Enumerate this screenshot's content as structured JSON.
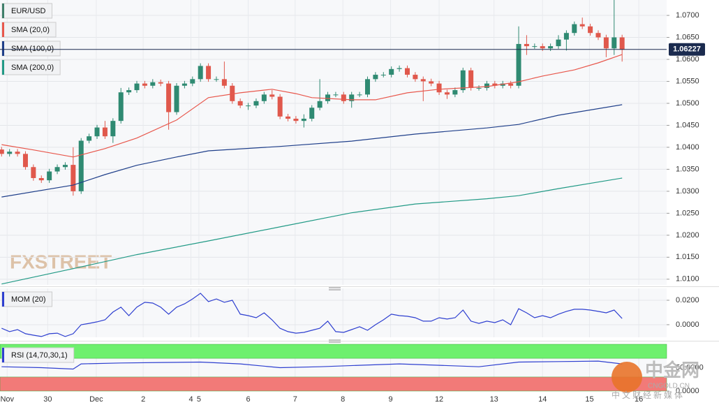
{
  "chart_data": [
    {
      "type": "candlestick",
      "name": "EUR/USD",
      "color": "#3f7f6a",
      "up_color": "#2f8a72",
      "down_color": "#e0584c",
      "open": [
        1.0395,
        1.0385,
        1.039,
        1.0385,
        1.0355,
        1.033,
        1.0325,
        1.0345,
        1.0355,
        1.036,
        1.03,
        1.0415,
        1.0425,
        1.0445,
        1.0425,
        1.046,
        1.0525,
        1.053,
        1.0545,
        1.054,
        1.0548,
        1.0545,
        1.048,
        1.054,
        1.0545,
        1.0555,
        1.0585,
        1.0555,
        1.0555,
        1.054,
        1.0505,
        1.0495,
        1.0495,
        1.0505,
        1.052,
        1.0515,
        1.047,
        1.0465,
        1.046,
        1.0465,
        1.049,
        1.0505,
        1.052,
        1.052,
        1.0505,
        1.052,
        1.052,
        1.0555,
        1.0565,
        1.0565,
        1.0578,
        1.058,
        1.0565,
        1.0555,
        1.055,
        1.0545,
        1.0525,
        1.052,
        1.053,
        1.0575,
        1.0535,
        1.0535,
        1.0545,
        1.054,
        1.0545,
        1.054,
        1.0635,
        1.063,
        1.063,
        1.0625,
        1.063,
        1.0645,
        1.066,
        1.068,
        1.0675,
        1.066,
        1.065,
        1.0625,
        1.065
      ],
      "high": [
        1.0401,
        1.0396,
        1.0396,
        1.0391,
        1.0361,
        1.0336,
        1.0351,
        1.0361,
        1.0366,
        1.04,
        1.0421,
        1.0431,
        1.0451,
        1.046,
        1.0466,
        1.0535,
        1.0536,
        1.0551,
        1.0551,
        1.0555,
        1.0554,
        1.0551,
        1.0546,
        1.0551,
        1.0561,
        1.0591,
        1.0591,
        1.0561,
        1.0595,
        1.0546,
        1.0511,
        1.0501,
        1.0511,
        1.0526,
        1.053,
        1.0521,
        1.0476,
        1.0471,
        1.0475,
        1.0496,
        1.0555,
        1.0526,
        1.0526,
        1.0526,
        1.0526,
        1.0526,
        1.0561,
        1.0571,
        1.0571,
        1.0584,
        1.0586,
        1.0586,
        1.0571,
        1.0561,
        1.0556,
        1.0551,
        1.0531,
        1.0536,
        1.0581,
        1.0581,
        1.0541,
        1.0551,
        1.0551,
        1.0551,
        1.0551,
        1.0675,
        1.0655,
        1.0636,
        1.0636,
        1.0636,
        1.0655,
        1.0666,
        1.0686,
        1.0695,
        1.0681,
        1.0666,
        1.0656,
        1.0735,
        1.0656
      ],
      "low": [
        1.0379,
        1.0379,
        1.0379,
        1.0349,
        1.0324,
        1.0319,
        1.0319,
        1.0339,
        1.0349,
        1.029,
        1.0294,
        1.0409,
        1.0419,
        1.0419,
        1.041,
        1.0454,
        1.0519,
        1.0524,
        1.0534,
        1.0534,
        1.0539,
        1.044,
        1.0474,
        1.0534,
        1.0539,
        1.0549,
        1.0549,
        1.0549,
        1.0534,
        1.0499,
        1.0489,
        1.0485,
        1.0489,
        1.0499,
        1.0509,
        1.0464,
        1.0459,
        1.0454,
        1.0445,
        1.0459,
        1.0484,
        1.0499,
        1.0514,
        1.0499,
        1.049,
        1.0514,
        1.0514,
        1.0549,
        1.0559,
        1.0559,
        1.0572,
        1.0559,
        1.0549,
        1.0505,
        1.0539,
        1.0519,
        1.051,
        1.0514,
        1.0524,
        1.0529,
        1.0529,
        1.0529,
        1.0534,
        1.0534,
        1.0534,
        1.0534,
        1.061,
        1.0624,
        1.0619,
        1.0619,
        1.0624,
        1.062,
        1.0654,
        1.0669,
        1.0654,
        1.0644,
        1.0605,
        1.061,
        1.0595
      ],
      "close": [
        1.0385,
        1.039,
        1.0385,
        1.0355,
        1.033,
        1.0325,
        1.0345,
        1.0355,
        1.036,
        1.03,
        1.0415,
        1.0425,
        1.0445,
        1.0425,
        1.046,
        1.0525,
        1.053,
        1.0545,
        1.054,
        1.0548,
        1.0545,
        1.048,
        1.054,
        1.0545,
        1.0555,
        1.0585,
        1.0555,
        1.0555,
        1.054,
        1.0505,
        1.0495,
        1.0495,
        1.0505,
        1.052,
        1.0515,
        1.047,
        1.0465,
        1.046,
        1.0465,
        1.049,
        1.0505,
        1.052,
        1.052,
        1.0505,
        1.052,
        1.052,
        1.0555,
        1.0565,
        1.0565,
        1.0578,
        1.058,
        1.0565,
        1.0555,
        1.055,
        1.0545,
        1.0525,
        1.052,
        1.053,
        1.0575,
        1.0535,
        1.0535,
        1.0545,
        1.054,
        1.0545,
        1.054,
        1.0635,
        1.063,
        1.063,
        1.0625,
        1.063,
        1.0645,
        1.066,
        1.068,
        1.0675,
        1.066,
        1.065,
        1.0625,
        1.065,
        1.0622
      ],
      "series": [
        {
          "name": "SMA (20,0)",
          "color": "#e8574c",
          "x": [
            0,
            4,
            9,
            13,
            17,
            22,
            26,
            30,
            34,
            37,
            39,
            44,
            47,
            51,
            55,
            61,
            65,
            68,
            72,
            75,
            78
          ],
          "values": [
            1.0406,
            1.0394,
            1.0378,
            1.0397,
            1.0421,
            1.0462,
            1.0513,
            1.0524,
            1.0532,
            1.0522,
            1.0513,
            1.0508,
            1.0508,
            1.0524,
            1.0532,
            1.0538,
            1.0549,
            1.0562,
            1.0576,
            1.0592,
            1.0611
          ]
        },
        {
          "name": "SMA (100,0)",
          "color": "#1f3f8a",
          "x": [
            0,
            9,
            13,
            17,
            22,
            26,
            35,
            44,
            52,
            61,
            65,
            70,
            78
          ],
          "values": [
            1.0287,
            1.0314,
            1.0338,
            1.0359,
            1.0378,
            1.0392,
            1.0402,
            1.0414,
            1.043,
            1.0444,
            1.0452,
            1.0473,
            1.0497
          ]
        },
        {
          "name": "SMA (200,0)",
          "color": "#229a86",
          "x": [
            0,
            9,
            17,
            26,
            35,
            44,
            52,
            61,
            65,
            70,
            78
          ],
          "values": [
            1.0089,
            1.0124,
            1.0156,
            1.0187,
            1.0219,
            1.0251,
            1.0271,
            1.0283,
            1.029,
            1.0306,
            1.033
          ]
        }
      ],
      "current_price": 1.06227,
      "xlim": [
        -0.2,
        83.6
      ],
      "ylim": [
        1.0087,
        1.0735
      ],
      "yticks": [
        {
          "value": 1.01,
          "label": "1.0100"
        },
        {
          "value": 1.015,
          "label": "1.0150"
        },
        {
          "value": 1.02,
          "label": "1.0200"
        },
        {
          "value": 1.025,
          "label": "1.0250"
        },
        {
          "value": 1.03,
          "label": "1.0300"
        },
        {
          "value": 1.035,
          "label": "1.0350"
        },
        {
          "value": 1.04,
          "label": "1.0400"
        },
        {
          "value": 1.045,
          "label": "1.0450"
        },
        {
          "value": 1.05,
          "label": "1.0500"
        },
        {
          "value": 1.055,
          "label": "1.0550"
        },
        {
          "value": 1.06,
          "label": "1.0600"
        },
        {
          "value": 1.065,
          "label": "1.0650"
        },
        {
          "value": 1.07,
          "label": "1.0700"
        }
      ],
      "xticks": [
        {
          "value": 0.7,
          "label": "Nov"
        },
        {
          "value": 5.8,
          "label": "30"
        },
        {
          "value": 11.9,
          "label": "Dec"
        },
        {
          "value": 17.8,
          "label": "2"
        },
        {
          "value": 23.8,
          "label": "4"
        },
        {
          "value": 24.8,
          "label": "5"
        },
        {
          "value": 31,
          "label": "6"
        },
        {
          "value": 36.9,
          "label": "7"
        },
        {
          "value": 42.9,
          "label": "8"
        },
        {
          "value": 48.9,
          "label": "9"
        },
        {
          "value": 55,
          "label": "12"
        },
        {
          "value": 61.9,
          "label": "13"
        },
        {
          "value": 68,
          "label": "14"
        },
        {
          "value": 73.9,
          "label": "15"
        },
        {
          "value": 80.1,
          "label": "16"
        }
      ],
      "grid": true
    },
    {
      "type": "line",
      "xlim": [
        -0.2,
        83.6
      ],
      "ylim": [
        -0.0103,
        0.0297
      ],
      "yticks": [
        {
          "value": 0,
          "label": "0.0000"
        },
        {
          "value": 0.02,
          "label": "0.0200"
        }
      ],
      "grid": true,
      "series": [
        {
          "name": "MOM (20)",
          "color": "#2e3fd0",
          "values": [
            -0.0029,
            -0.0057,
            -0.004,
            -0.0074,
            -0.0086,
            -0.0097,
            -0.0074,
            -0.0069,
            -0.0097,
            -0.0074,
            0,
            0.0011,
            0.0023,
            0.004,
            0.0103,
            0.0143,
            0.0074,
            0.0143,
            0.0183,
            0.0177,
            0.0143,
            0.0086,
            0.0143,
            0.0171,
            0.0211,
            0.0257,
            0.0189,
            0.0211,
            0.0183,
            0.02,
            0.0086,
            0.0074,
            0.0057,
            0.0097,
            0.004,
            -0.0029,
            -0.0057,
            -0.0069,
            -0.0063,
            -0.0046,
            -0.0029,
            0.0029,
            -0.0057,
            -0.0063,
            -0.004,
            -0.0017,
            -0.0046,
            0,
            0.004,
            0.0086,
            0.0074,
            0.0069,
            0.0057,
            0.0029,
            0.0029,
            0.0057,
            0.0046,
            0.0057,
            0.012,
            0.0029,
            0.0011,
            0.0029,
            0.0017,
            0.004,
            0,
            0.0131,
            0.0097,
            0.0057,
            0.0074,
            0.0057,
            0.0086,
            0.0109,
            0.0126,
            0.0126,
            0.012,
            0.0109,
            0.0097,
            0.012,
            0.0051
          ]
        }
      ]
    },
    {
      "type": "line",
      "xlim": [
        -0.2,
        83.6
      ],
      "ylim": [
        0,
        100
      ],
      "yticks": [
        {
          "value": 0,
          "label": "0.0000"
        },
        {
          "value": 50,
          "label": "50.0000"
        }
      ],
      "grid": false,
      "bands": [
        {
          "from": 70,
          "to": 100,
          "color": "#6ef06e"
        },
        {
          "from": 0,
          "to": 30,
          "color": "#f27a78"
        }
      ],
      "series": [
        {
          "name": "RSI (14,70,30,1)",
          "color": "#2e3fd0",
          "x": [
            0,
            5,
            9,
            10,
            15,
            20,
            25,
            30,
            35,
            40,
            45,
            50,
            55,
            60,
            65,
            70,
            75,
            78
          ],
          "values": [
            52,
            50,
            47,
            58,
            60,
            61,
            62,
            58,
            50,
            52,
            55,
            58,
            55,
            52,
            62,
            63,
            64,
            58
          ]
        }
      ]
    }
  ],
  "watermarks": {
    "brand": "FXSTREET",
    "logo": "中金网",
    "site": "CNGOLD.CN",
    "tagline": "中文财经新媒体"
  }
}
